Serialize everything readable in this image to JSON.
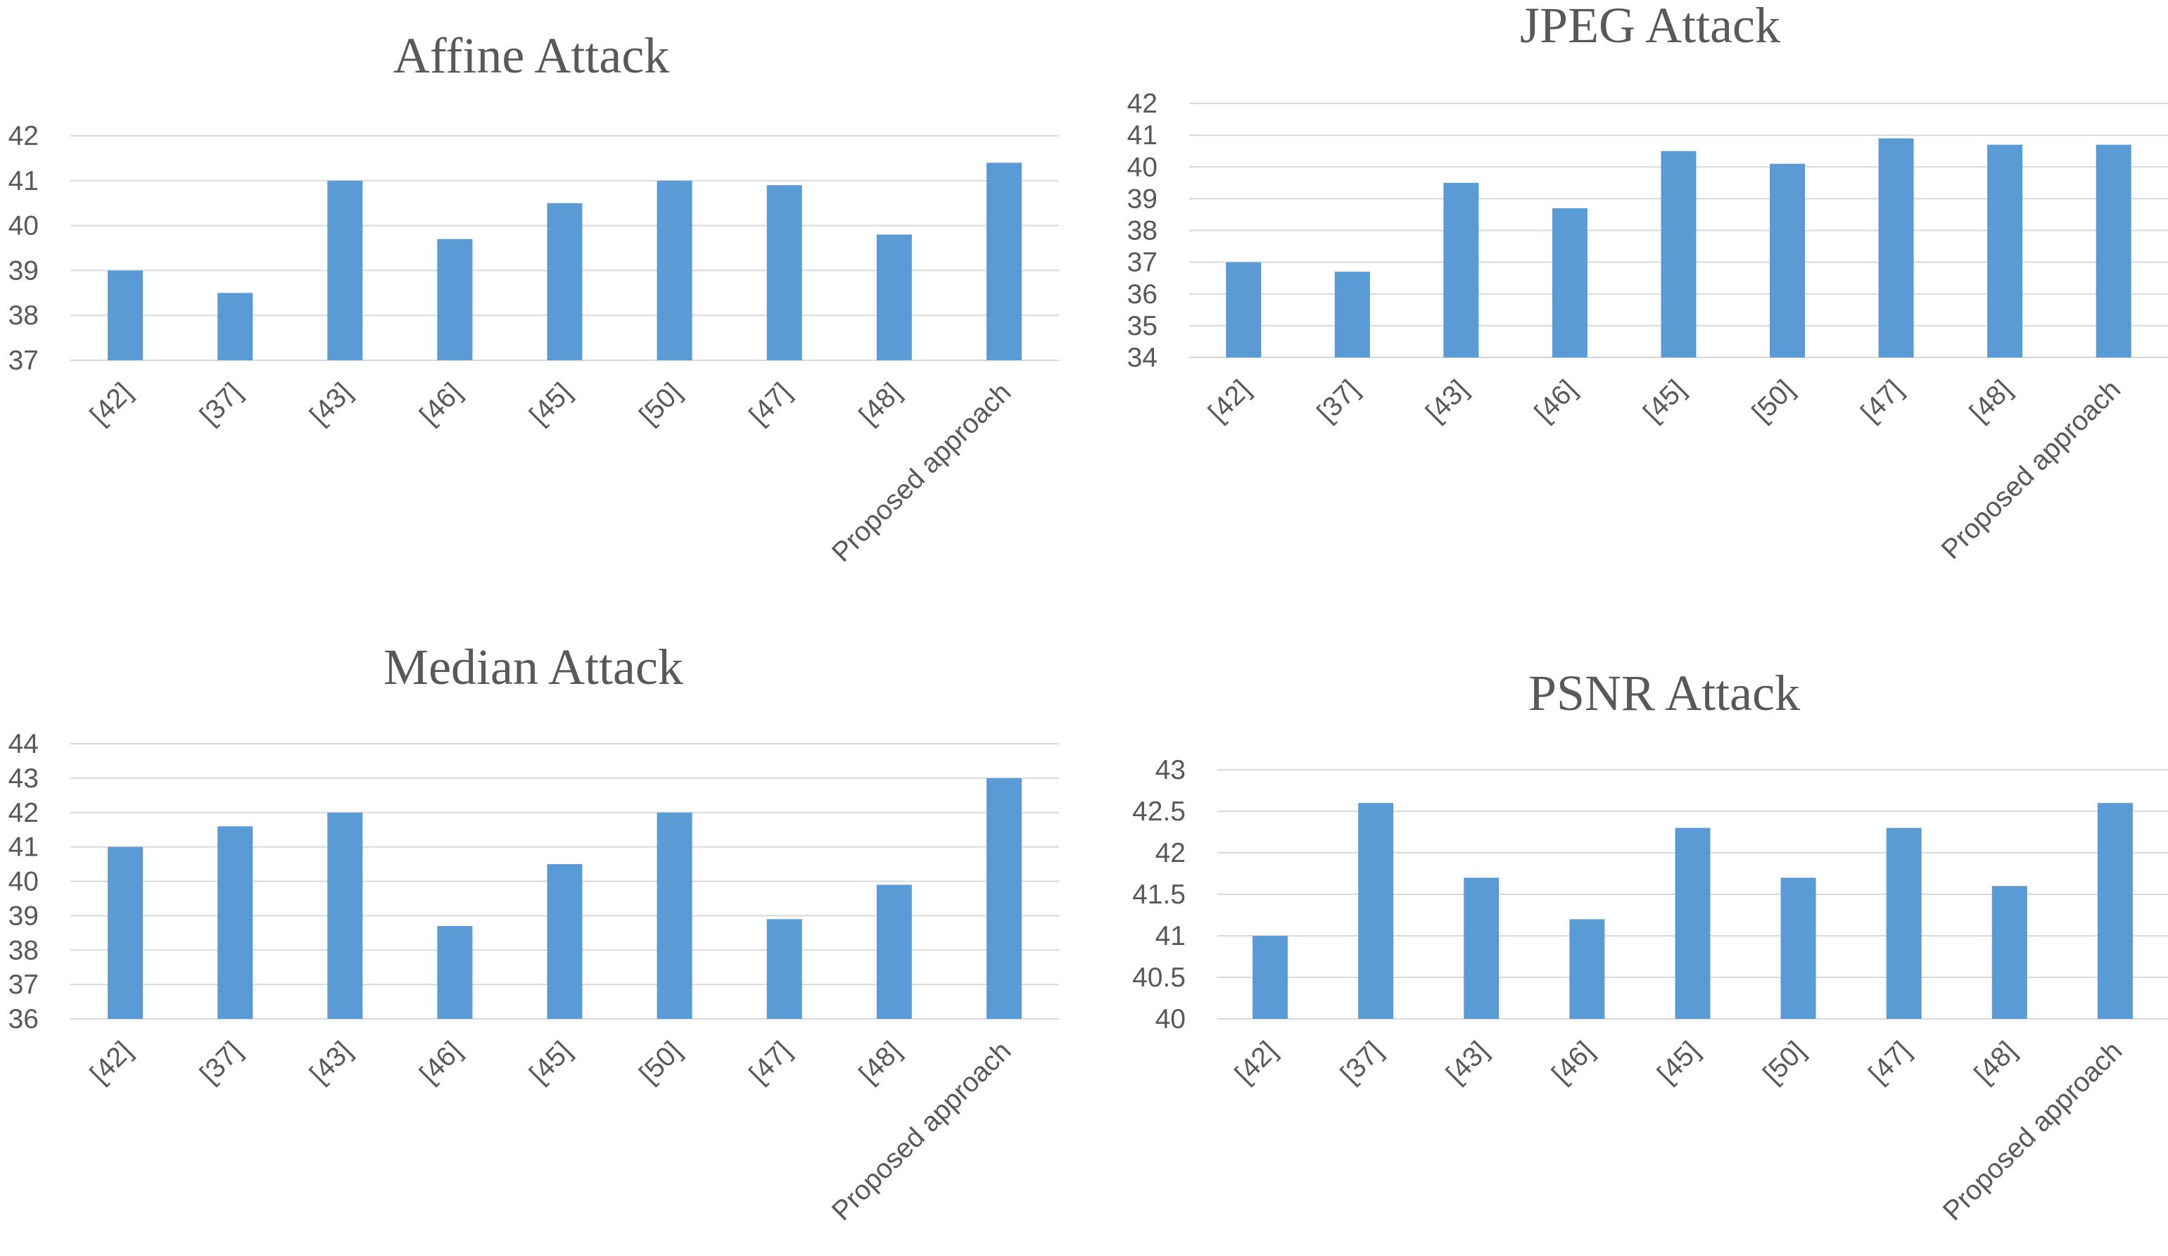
{
  "chart_data": [
    {
      "type": "bar",
      "title": "Affine Attack",
      "categories": [
        "[42]",
        "[37]",
        "[43]",
        "[46]",
        "[45]",
        "[50]",
        "[47]",
        "[48]",
        "Proposed approach"
      ],
      "values": [
        39,
        38.5,
        41,
        39.7,
        40.5,
        41,
        40.9,
        39.8,
        41.4
      ],
      "ylim": [
        37,
        42
      ],
      "yticks": [
        "37",
        "38",
        "39",
        "40",
        "41",
        "42"
      ],
      "grid": true,
      "color": "#5b9bd5"
    },
    {
      "type": "bar",
      "title": "JPEG Attack",
      "categories": [
        "[42]",
        "[37]",
        "[43]",
        "[46]",
        "[45]",
        "[50]",
        "[47]",
        "[48]",
        "Proposed approach"
      ],
      "values": [
        37,
        36.7,
        39.5,
        38.7,
        40.5,
        40.1,
        40.9,
        40.7,
        40.7
      ],
      "ylim": [
        34,
        42
      ],
      "yticks": [
        "34",
        "35",
        "36",
        "37",
        "38",
        "39",
        "40",
        "41",
        "42"
      ],
      "grid": true,
      "color": "#5b9bd5"
    },
    {
      "type": "bar",
      "title": "Median Attack",
      "categories": [
        "[42]",
        "[37]",
        "[43]",
        "[46]",
        "[45]",
        "[50]",
        "[47]",
        "[48]",
        "Proposed approach"
      ],
      "values": [
        41,
        41.6,
        42,
        38.7,
        40.5,
        42,
        38.9,
        39.9,
        43
      ],
      "ylim": [
        36,
        44
      ],
      "yticks": [
        "36",
        "37",
        "38",
        "39",
        "40",
        "41",
        "42",
        "43",
        "44"
      ],
      "grid": true,
      "color": "#5b9bd5"
    },
    {
      "type": "bar",
      "title": "PSNR Attack",
      "categories": [
        "[42]",
        "[37]",
        "[43]",
        "[46]",
        "[45]",
        "[50]",
        "[47]",
        "[48]",
        "Proposed approach"
      ],
      "values": [
        41,
        42.6,
        41.7,
        41.2,
        42.3,
        41.7,
        42.3,
        41.6,
        42.6
      ],
      "ylim": [
        40,
        43
      ],
      "yticks": [
        "40",
        "40.5",
        "41",
        "41.5",
        "42",
        "42.5",
        "43"
      ],
      "grid": true,
      "color": "#5b9bd5"
    }
  ]
}
